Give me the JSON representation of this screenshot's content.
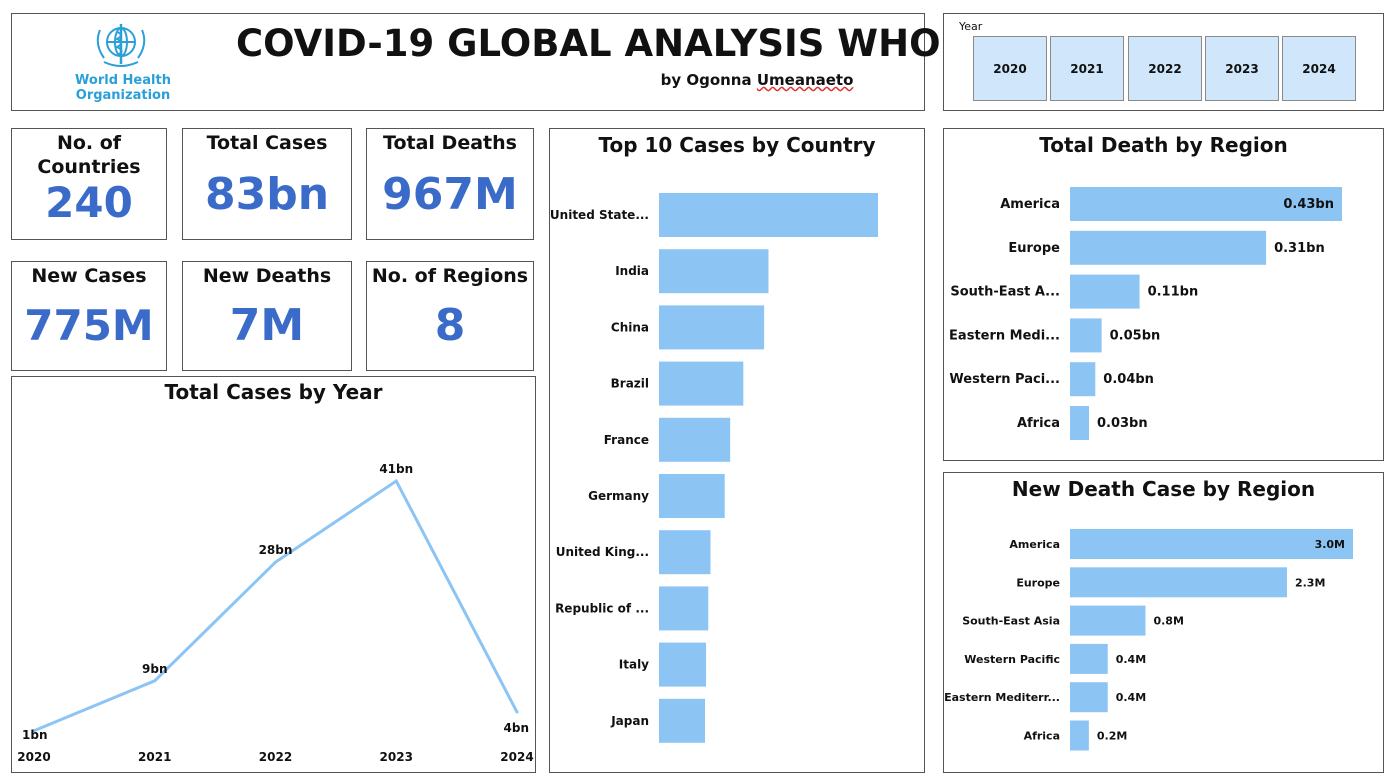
{
  "header": {
    "title": "COVID-19 GLOBAL ANALYSIS WHO",
    "byline_prefix": "by Ogonna",
    "byline_name": "Umeanaeto",
    "logo_line1": "World Health",
    "logo_line2": "Organization"
  },
  "year_slicer": {
    "label": "Year",
    "years": [
      "2020",
      "2021",
      "2022",
      "2023",
      "2024"
    ]
  },
  "kpis": {
    "countries": {
      "label_1": "No. of",
      "label_2": "Countries",
      "value": "240"
    },
    "total_cases": {
      "label": "Total Cases",
      "value": "83bn"
    },
    "total_deaths": {
      "label": "Total Deaths",
      "value": "967M"
    },
    "new_cases": {
      "label": "New Cases",
      "value": "775M"
    },
    "new_deaths": {
      "label": "New Deaths",
      "value": "7M"
    },
    "regions": {
      "label": "No. of Regions",
      "value": "8"
    }
  },
  "colors": {
    "bar": "#8cc4f4",
    "kpi": "#3b6bc9",
    "line": "#8cc4f4"
  },
  "chart_data": [
    {
      "id": "cases_by_year",
      "type": "line",
      "title": "Total Cases by Year",
      "x": [
        "2020",
        "2021",
        "2022",
        "2023",
        "2024"
      ],
      "values": [
        1,
        9,
        28,
        41,
        4
      ],
      "labels": [
        "1bn",
        "9bn",
        "28bn",
        "41bn",
        "4bn"
      ],
      "ylim": [
        0,
        41
      ]
    },
    {
      "id": "top10_country",
      "type": "bar",
      "orientation": "horizontal",
      "title": "Top 10 Cases by Country",
      "categories": [
        "United State...",
        "India",
        "China",
        "Brazil",
        "France",
        "Germany",
        "United King...",
        "Republic of ...",
        "Italy",
        "Japan"
      ],
      "values": [
        100,
        50,
        48,
        38.5,
        32.5,
        30,
        23.5,
        22.5,
        21.5,
        21
      ]
    },
    {
      "id": "death_by_region",
      "type": "bar",
      "orientation": "horizontal",
      "title": "Total Death by Region",
      "categories": [
        "America",
        "Europe",
        "South-East A...",
        "Eastern Medi...",
        "Western Paci...",
        "Africa"
      ],
      "values": [
        0.43,
        0.31,
        0.11,
        0.05,
        0.04,
        0.03
      ],
      "labels": [
        "0.43bn",
        "0.31bn",
        "0.11bn",
        "0.05bn",
        "0.04bn",
        "0.03bn"
      ]
    },
    {
      "id": "new_death_by_region",
      "type": "bar",
      "orientation": "horizontal",
      "title": "New Death Case by Region",
      "categories": [
        "America",
        "Europe",
        "South-East Asia",
        "Western Pacific",
        "Eastern Mediterr...",
        "Africa"
      ],
      "values": [
        3.0,
        2.3,
        0.8,
        0.4,
        0.4,
        0.2
      ],
      "labels": [
        "3.0M",
        "2.3M",
        "0.8M",
        "0.4M",
        "0.4M",
        "0.2M"
      ]
    }
  ]
}
